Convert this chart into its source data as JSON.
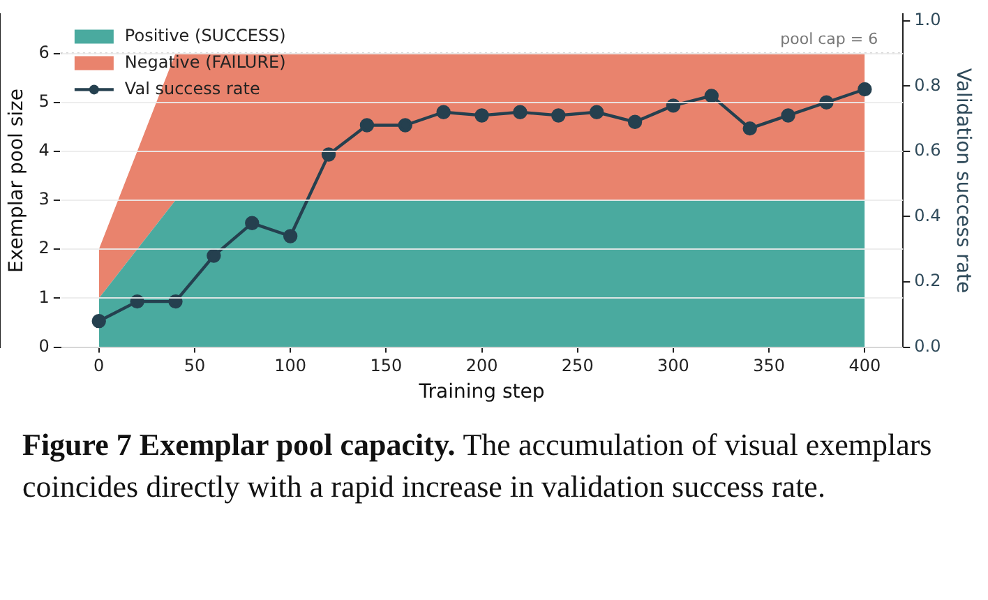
{
  "chart_data": {
    "type": "area",
    "xlabel": "Training step",
    "ylabel": "Exemplar pool size",
    "y2label": "Validation success rate",
    "x": [
      0,
      20,
      40,
      60,
      80,
      100,
      120,
      140,
      160,
      180,
      200,
      220,
      240,
      260,
      280,
      300,
      320,
      340,
      360,
      380,
      400
    ],
    "stacked": true,
    "series": [
      {
        "name": "Positive (SUCCESS)",
        "color": "#4aaa9f",
        "values": [
          1,
          2,
          3,
          3,
          3,
          3,
          3,
          3,
          3,
          3,
          3,
          3,
          3,
          3,
          3,
          3,
          3,
          3,
          3,
          3,
          3
        ]
      },
      {
        "name": "Negative (FAILURE)",
        "color": "#e9836d",
        "values": [
          1,
          2,
          3,
          3,
          3,
          3,
          3,
          3,
          3,
          3,
          3,
          3,
          3,
          3,
          3,
          3,
          3,
          3,
          3,
          3,
          3
        ]
      },
      {
        "name": "Val success rate",
        "type": "line",
        "axis": "y2",
        "color": "#25404f",
        "marker": "circle",
        "values": [
          0.08,
          0.14,
          0.14,
          0.28,
          0.38,
          0.34,
          0.59,
          0.68,
          0.68,
          0.72,
          0.71,
          0.72,
          0.71,
          0.72,
          0.69,
          0.74,
          0.77,
          0.67,
          0.71,
          0.75,
          0.79
        ]
      }
    ],
    "xlim": [
      -20,
      420
    ],
    "xticks": [
      0,
      50,
      100,
      150,
      200,
      250,
      300,
      350,
      400
    ],
    "ylim": [
      0,
      6.8
    ],
    "yticks": [
      0,
      1,
      2,
      3,
      4,
      5,
      6
    ],
    "y2lim": [
      0,
      1.02
    ],
    "y2ticks": [
      {
        "value": 0,
        "label": "0.0"
      },
      {
        "value": 0.2,
        "label": "0.2"
      },
      {
        "value": 0.4,
        "label": "0.4"
      },
      {
        "value": 0.6,
        "label": "0.6"
      },
      {
        "value": 0.8,
        "label": "0.8"
      },
      {
        "value": 1,
        "label": "1.0"
      }
    ],
    "ref_lines": [
      {
        "axis": "y",
        "value": 6,
        "label": "pool cap = 6",
        "color": "#aaaaaa",
        "line_style": "dotted"
      }
    ],
    "grid": "y",
    "legend": "top left",
    "annotations": [
      "Figure 7  Exemplar pool capacity.",
      "The accumulation of visual exemplars coincides directly with a rapid increase in validation success rate."
    ]
  }
}
